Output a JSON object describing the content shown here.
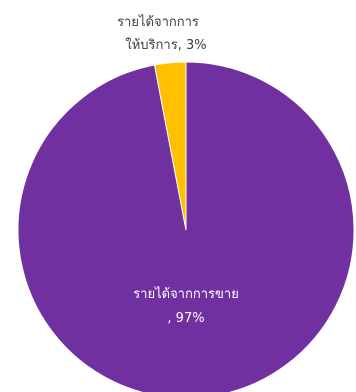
{
  "chart_data": {
    "type": "pie",
    "title": "",
    "slices": [
      {
        "label_line1": "รายได้จากการขาย",
        "label_line2": ", 97%",
        "value": 97,
        "color": "#7030A0",
        "label_color": "#ffffff"
      },
      {
        "label_line1": "รายได้จากการ",
        "label_line2": "ให้บริการ, 3%",
        "value": 3,
        "color": "#FFC000",
        "label_color": "#404040"
      }
    ]
  }
}
